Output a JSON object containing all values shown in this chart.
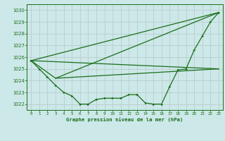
{
  "title": "Graphe pression niveau de la mer (hPa)",
  "background_color": "#cce8e8",
  "grid_color": "#b8c8c8",
  "line_color": "#1a6e1a",
  "xlim": [
    -0.5,
    23.5
  ],
  "ylim": [
    1021.5,
    1030.5
  ],
  "yticks": [
    1022,
    1023,
    1024,
    1025,
    1026,
    1027,
    1028,
    1029,
    1030
  ],
  "xticks": [
    0,
    1,
    2,
    3,
    4,
    5,
    6,
    7,
    8,
    9,
    10,
    11,
    12,
    13,
    14,
    15,
    16,
    17,
    18,
    19,
    20,
    21,
    22,
    23
  ],
  "series": {
    "line1_x": [
      0,
      1,
      2,
      3,
      4,
      5,
      6,
      7,
      8,
      9,
      10,
      11,
      12,
      13,
      14,
      15,
      16,
      17,
      18,
      19,
      20,
      21,
      22,
      23
    ],
    "line1_y": [
      1025.7,
      1025.0,
      1024.3,
      1023.6,
      1023.0,
      1022.7,
      1022.0,
      1022.0,
      1022.4,
      1022.5,
      1022.5,
      1022.5,
      1022.8,
      1022.8,
      1022.1,
      1022.0,
      1022.0,
      1023.5,
      1024.9,
      1025.0,
      1026.6,
      1027.8,
      1029.0,
      1029.8
    ],
    "line2_x": [
      0,
      23
    ],
    "line2_y": [
      1025.7,
      1029.8
    ],
    "line3_x": [
      0,
      23
    ],
    "line3_y": [
      1025.7,
      1025.0
    ],
    "line4_x": [
      0,
      3,
      23
    ],
    "line4_y": [
      1025.7,
      1024.2,
      1025.0
    ],
    "line5_x": [
      3,
      23
    ],
    "line5_y": [
      1024.2,
      1029.8
    ]
  }
}
